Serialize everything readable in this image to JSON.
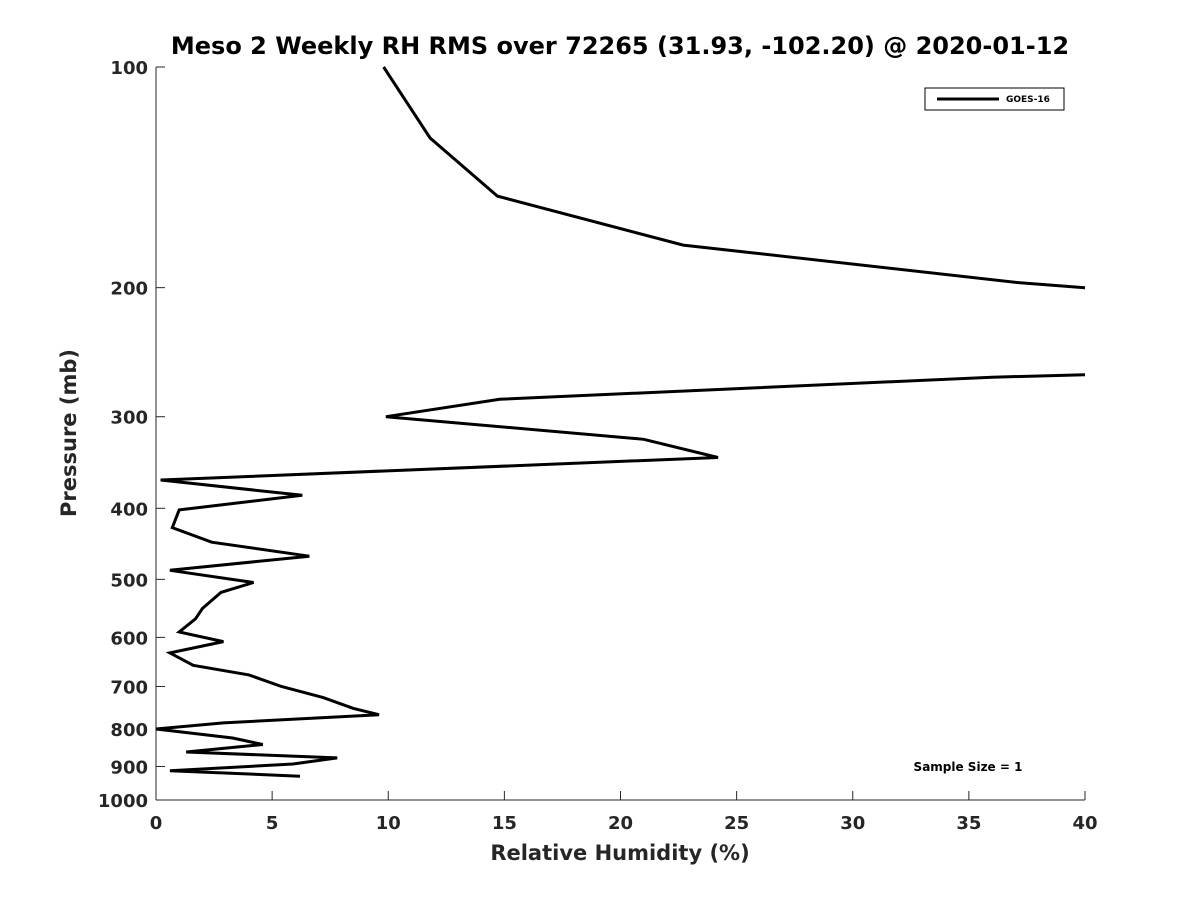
{
  "chart_data": {
    "type": "line",
    "title": "Meso 2 Weekly RH RMS over 72265 (31.93, -102.20) @ 2020-01-12",
    "xlabel": "Relative Humidity (%)",
    "ylabel": "Pressure (mb)",
    "xlim": [
      0,
      40
    ],
    "ylim": [
      100,
      1000
    ],
    "yscale": "log",
    "yreverse": true,
    "grid": false,
    "x_ticks": [
      0,
      5,
      10,
      15,
      20,
      25,
      30,
      35,
      40
    ],
    "y_ticks": [
      100,
      200,
      300,
      400,
      500,
      600,
      700,
      800,
      900,
      1000
    ],
    "legend": {
      "position": "top-right"
    },
    "annotation": "Sample Size = 1",
    "series": [
      {
        "name": "GOES-16",
        "color": "#000000",
        "points": [
          [
            9.8,
            100
          ],
          [
            11.8,
            125
          ],
          [
            14.7,
            150
          ],
          [
            22.7,
            175
          ],
          [
            37.2,
            197
          ],
          [
            40.0,
            200
          ],
          [
            null,
            230
          ],
          [
            40.0,
            263
          ],
          [
            36.0,
            265
          ],
          [
            14.8,
            284
          ],
          [
            9.9,
            300
          ],
          [
            21.0,
            322
          ],
          [
            24.2,
            341
          ],
          [
            0.2,
            366
          ],
          [
            6.3,
            384
          ],
          [
            1.0,
            402
          ],
          [
            0.7,
            425
          ],
          [
            2.4,
            445
          ],
          [
            6.6,
            465
          ],
          [
            0.6,
            486
          ],
          [
            4.2,
            505
          ],
          [
            2.8,
            521
          ],
          [
            2.0,
            548
          ],
          [
            1.7,
            566
          ],
          [
            1.0,
            590
          ],
          [
            2.9,
            608
          ],
          [
            0.6,
            630
          ],
          [
            1.6,
            655
          ],
          [
            4.0,
            675
          ],
          [
            5.4,
            700
          ],
          [
            7.2,
            725
          ],
          [
            8.5,
            750
          ],
          [
            9.6,
            765
          ],
          [
            2.9,
            785
          ],
          [
            0.0,
            800
          ],
          [
            3.3,
            823
          ],
          [
            4.6,
            840
          ],
          [
            1.3,
            860
          ],
          [
            7.8,
            876
          ],
          [
            5.9,
            893
          ],
          [
            0.6,
            912
          ],
          [
            6.2,
            928
          ]
        ]
      }
    ]
  }
}
